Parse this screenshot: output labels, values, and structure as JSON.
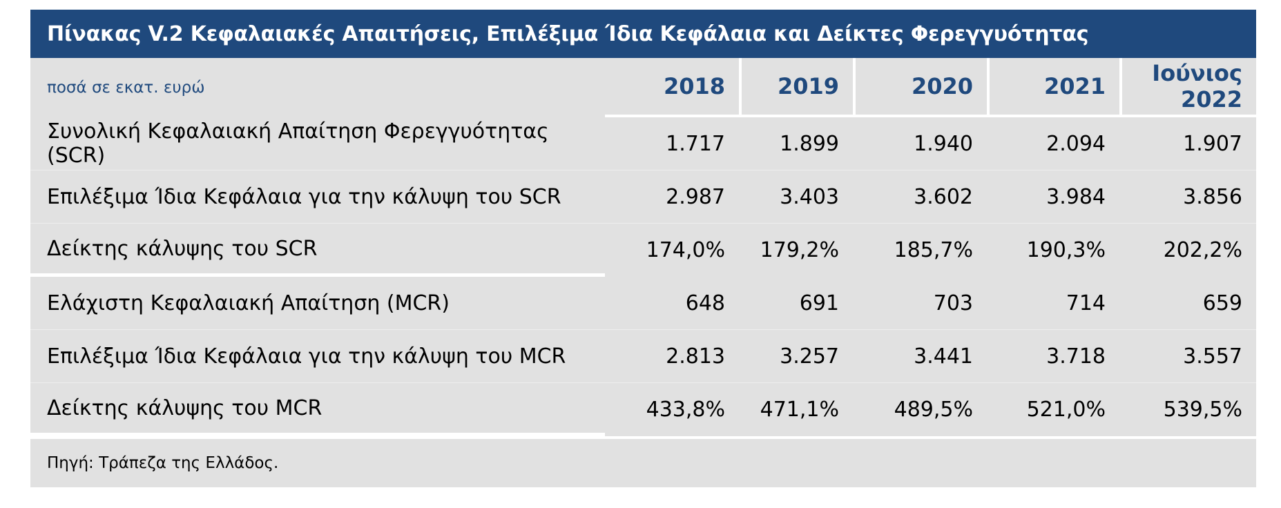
{
  "title": "Πίνακας V.2 Κεφαλαιακές Απαιτήσεις, Επιλέξιμα Ίδια Κεφάλαια και Δείκτες Φερεγγυότητας",
  "unit_label": "ποσά σε εκατ. ευρώ",
  "columns": [
    "2018",
    "2019",
    "2020",
    "2021",
    "Ιούνιος\n2022"
  ],
  "rows": [
    {
      "label": "Συνολική Κεφαλαιακή Απαίτηση Φερεγγυότητας (SCR)",
      "values": [
        "1.717",
        "1.899",
        "1.940",
        "2.094",
        "1.907"
      ]
    },
    {
      "label": "Επιλέξιμα Ίδια Κεφάλαια για την κάλυψη του SCR",
      "values": [
        "2.987",
        "3.403",
        "3.602",
        "3.984",
        "3.856"
      ]
    },
    {
      "label": "Δείκτης κάλυψης του SCR",
      "values": [
        "174,0%",
        "179,2%",
        "185,7%",
        "190,3%",
        "202,2%"
      ]
    },
    {
      "label": "Ελάχιστη Κεφαλαιακή Απαίτηση (MCR)",
      "values": [
        "648",
        "691",
        "703",
        "714",
        "659"
      ]
    },
    {
      "label": "Επιλέξιμα Ίδια Κεφάλαια για την κάλυψη του MCR",
      "values": [
        "2.813",
        "3.257",
        "3.441",
        "3.718",
        "3.557"
      ]
    },
    {
      "label": "Δείκτης κάλυψης του MCR",
      "values": [
        "433,8%",
        "471,1%",
        "489,5%",
        "521,0%",
        "539,5%"
      ]
    }
  ],
  "source": "Πηγή: Τράπεζα της Ελλάδος.",
  "colors": {
    "header_bg": "#1f497d",
    "header_text": "#ffffff",
    "table_bg": "#e1e1e1",
    "accent_text": "#1f497d"
  }
}
